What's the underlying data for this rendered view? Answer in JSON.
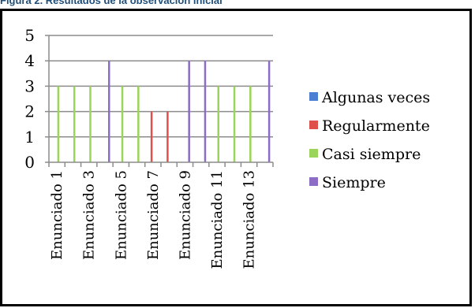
{
  "caption": "Figura 2. Resultados de la observación inicial",
  "chart_data": {
    "type": "bar",
    "title": "",
    "xlabel": "",
    "ylabel": "",
    "ylim": [
      0,
      5
    ],
    "yticks": [
      0,
      1,
      2,
      3,
      4,
      5
    ],
    "grid": true,
    "legend_position": "right",
    "categories": [
      "Enunciado 1",
      "Enunciado 2",
      "Enunciado 3",
      "Enunciado 4",
      "Enunciado 5",
      "Enunciado 6",
      "Enunciado 7",
      "Enunciado 8",
      "Enunciado 9",
      "Enunciado 10",
      "Enunciado 11",
      "Enunciado 12",
      "Enunciado 13",
      "Enunciado 14"
    ],
    "shown_xtick_labels": [
      "Enunciado 1",
      "Enunciado 3",
      "Enunciado 5",
      "Enunciado 7",
      "Enunciado 9",
      "Enunciado 11",
      "Enunciado 13"
    ],
    "series": [
      {
        "name": "Algunas veces",
        "color": "#4a7fd4",
        "values": [
          0,
          0,
          0,
          0,
          0,
          0,
          0,
          0,
          0,
          0,
          0,
          0,
          0,
          0
        ]
      },
      {
        "name": "Regularmente",
        "color": "#e0504a",
        "values": [
          0,
          0,
          0,
          0,
          0,
          0,
          2,
          2,
          0,
          0,
          0,
          0,
          0,
          0
        ]
      },
      {
        "name": "Casi siempre",
        "color": "#9bd45a",
        "values": [
          3,
          3,
          3,
          0,
          3,
          3,
          0,
          0,
          0,
          0,
          3,
          3,
          3,
          0
        ]
      },
      {
        "name": "Siempre",
        "color": "#8c6cc4",
        "values": [
          0,
          0,
          0,
          4,
          0,
          0,
          0,
          0,
          4,
          4,
          0,
          0,
          0,
          4
        ]
      }
    ]
  }
}
